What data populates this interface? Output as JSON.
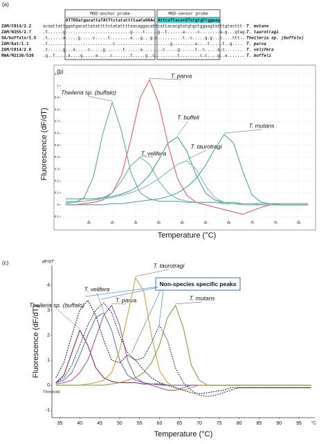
{
  "figure_labels": {
    "a": "(a)",
    "b": "(b)",
    "c": "(c)"
  },
  "alignment": {
    "anchor_label": "MOD-anchor probe",
    "sensor_label": "MOD-sensor probe",
    "anchor_probe": "ATTGGatgacattaTAtTtctatattttaaCaGGAc",
    "sensor_probe": "AttcaTtacacGTatgtgCtggaag",
    "rows": [
      {
        "id": "ZAM/C914/2.2",
        "sequence": "acaattattggatgacattatattttctatattttaacaggacattcattacacgtatgtgctggaagtatttgtacttt",
        "species": "T. mutans"
      },
      {
        "id": "ZAM/N355/2.7",
        "sequence": ".t......g..........................g....t.....g..t......a.....c........a.g...gtag.",
        "species": "T. taurotragi"
      },
      {
        "id": "SA/buffalo/1.5",
        "sequence": ".t......a.....g.....c.....t........a...g...g.c..........t..c.....g.g...c....ttt..",
        "species": "Theileria sp. (buffalo)"
      },
      {
        "id": "ZAM/Kat/1.1",
        "sequence": ".t..........................c......................g.........a....t.....t..g....",
        "species": "T. parva"
      },
      {
        "id": "ZAM/C914/2.8",
        "sequence": ".t......g...a.....c.....g.......t......a........c.....g......t..c.....a.c.......",
        "species": "T. velifera"
      },
      {
        "id": "RWA/M2138/538",
        "sequence": ".g..t.....a....g.....a.....c.......t.....g..c.........t........c.c....g..a.......",
        "species": "T. buffeli"
      }
    ]
  },
  "chart_data": [
    {
      "type": "line",
      "x_label": "Temperature (°C)",
      "y_label": "Fluorescence (dF/dT)",
      "xlim": [
        29,
        83
      ],
      "ylim": [
        -0.13,
        1.15
      ],
      "xticks": [
        35,
        40,
        45,
        50,
        55,
        60,
        65,
        70,
        75,
        80
      ],
      "yticks": [
        -0.1,
        0,
        0.1,
        0.2,
        0.3,
        0.4,
        0.5,
        0.6,
        0.7,
        0.8,
        0.9,
        1,
        1.1
      ],
      "grid": true,
      "x": [
        30,
        32,
        34,
        36,
        38,
        40,
        42,
        44,
        46,
        48,
        50,
        52,
        54,
        56,
        58,
        60,
        62,
        64,
        66,
        68,
        70,
        72,
        74,
        76,
        78,
        80,
        82
      ],
      "series": [
        {
          "name": "Theileria sp. (buffalo)",
          "color": "#5fa8a0",
          "values": [
            0.01,
            0.02,
            0.06,
            0.24,
            0.6,
            0.86,
            0.62,
            0.27,
            0.1,
            0.05,
            0.03,
            0.03,
            0.03,
            0.02,
            0.02,
            0.02,
            0.02,
            0.01,
            0.01,
            0.01,
            0.01,
            0,
            0,
            0,
            0,
            0,
            0
          ]
        },
        {
          "name": "T. parva",
          "color": "#d9606a",
          "values": [
            0,
            0,
            0.01,
            0.02,
            0.04,
            0.1,
            0.25,
            0.55,
            0.9,
            1.05,
            0.85,
            0.5,
            0.22,
            0.08,
            0.02,
            0,
            -0.02,
            -0.04,
            -0.06,
            -0.08,
            -0.05,
            -0.02,
            0,
            0.01,
            0.01,
            0.01,
            0.01
          ]
        },
        {
          "name": "T. velifera",
          "color": "#6fb3a8",
          "values": [
            0.02,
            0.02,
            0.03,
            0.04,
            0.06,
            0.1,
            0.2,
            0.33,
            0.4,
            0.34,
            0.2,
            0.1,
            0.05,
            0.03,
            0.02,
            0.02,
            0.02,
            0.02,
            0.02,
            0.01,
            0.01,
            0.01,
            0.01,
            0.01,
            0.01,
            0.01,
            0.01
          ]
        },
        {
          "name": "T. buffeli",
          "color": "#4f9c96",
          "values": [
            0.05,
            0.05,
            0.05,
            0.05,
            0.06,
            0.07,
            0.09,
            0.12,
            0.17,
            0.25,
            0.38,
            0.52,
            0.57,
            0.45,
            0.25,
            0.1,
            0.04,
            0.02,
            0.01,
            0,
            0,
            0,
            0,
            0,
            0,
            0,
            0
          ]
        },
        {
          "name": "T. taurotragi",
          "color": "#7cbcb0",
          "values": [
            0.03,
            0.03,
            0.03,
            0.04,
            0.05,
            0.06,
            0.08,
            0.1,
            0.13,
            0.17,
            0.22,
            0.28,
            0.34,
            0.37,
            0.3,
            0.16,
            0.06,
            0.02,
            0.01,
            0,
            0,
            0,
            0,
            0,
            0,
            0,
            0
          ]
        },
        {
          "name": "T. mutans",
          "color": "#55a39a",
          "values": [
            0,
            0,
            0,
            0,
            0,
            0.01,
            0.01,
            0.02,
            0.03,
            0.04,
            0.05,
            0.07,
            0.1,
            0.15,
            0.22,
            0.33,
            0.47,
            0.59,
            0.52,
            0.28,
            0.08,
            0.02,
            0.01,
            0,
            0,
            0,
            0
          ]
        }
      ]
    },
    {
      "type": "line",
      "x_label": "Temperature (°C)",
      "y_label": "Fluorescence (dF/dT)",
      "y_unit": "dF/dT",
      "x_unit": "°C",
      "threshold_label": "Threshold",
      "callout": "Non-species specific peaks",
      "xlim": [
        33,
        99
      ],
      "ylim": [
        -1.3,
        4.8
      ],
      "xticks": [
        35,
        40,
        45,
        50,
        55,
        60,
        65,
        70,
        75,
        80,
        85,
        90,
        95
      ],
      "yticks": [
        -1,
        0,
        1,
        2,
        3,
        4
      ],
      "grid": false,
      "x": [
        34,
        36,
        38,
        40,
        42,
        44,
        46,
        48,
        50,
        52,
        54,
        56,
        58,
        60,
        62,
        64,
        66,
        68,
        70,
        72,
        74,
        76,
        78,
        80,
        82,
        84,
        86,
        88,
        90,
        92,
        94,
        96,
        98
      ],
      "series": [
        {
          "name": "Theileria sp. (buffalo)",
          "color": "#8c2a4a",
          "values": [
            0.1,
            0.4,
            1.3,
            2.2,
            1.6,
            0.7,
            0.3,
            0.15,
            0.1,
            0.1,
            0.1,
            0.05,
            0.05,
            0.05,
            0,
            0,
            0,
            0,
            0,
            0,
            0,
            0,
            0,
            0,
            0,
            0,
            0,
            0,
            0,
            0,
            0,
            0,
            0
          ]
        },
        {
          "name": "T. velifera",
          "color": "#5a7fc2",
          "values": [
            0.1,
            0.2,
            0.5,
            1.2,
            2.0,
            2.7,
            2.9,
            2.2,
            1.0,
            0.4,
            0.2,
            0.1,
            0.05,
            0,
            0,
            0,
            0,
            0,
            0,
            0,
            0,
            0,
            0,
            0,
            0,
            0,
            0,
            0,
            0,
            0,
            0,
            0,
            0
          ]
        },
        {
          "name": "T. parva",
          "color": "#9a5aa8",
          "values": [
            0.05,
            0.1,
            0.2,
            0.5,
            1.0,
            1.9,
            2.8,
            3.2,
            2.4,
            1.0,
            0.3,
            0.1,
            0,
            -0.1,
            -0.2,
            -0.2,
            -0.1,
            0,
            0,
            0,
            0,
            0,
            0,
            0,
            0,
            0,
            0,
            0,
            0,
            0,
            0,
            0,
            0
          ]
        },
        {
          "name": "T. taurotragi",
          "color": "#c9a244",
          "values": [
            0,
            0,
            0,
            0,
            0.05,
            0.1,
            0.2,
            0.5,
            1.4,
            2.8,
            4.3,
            3.8,
            2.0,
            0.6,
            0.1,
            -0.1,
            -0.2,
            -0.1,
            0,
            0,
            0,
            0,
            0,
            0,
            0,
            0,
            0,
            0,
            0,
            0,
            0,
            0,
            0
          ]
        },
        {
          "name": "T. mutans",
          "color": "#7aa342",
          "values": [
            0,
            0,
            0,
            0,
            0,
            0,
            0,
            0.05,
            0.1,
            0.2,
            0.3,
            0.5,
            0.9,
            1.6,
            2.7,
            3.2,
            2.3,
            0.8,
            0.2,
            0,
            0,
            0,
            0,
            0,
            0,
            0,
            0,
            0,
            0,
            0,
            0,
            0,
            0
          ]
        },
        {
          "color": "#222222",
          "dash": true,
          "values": [
            0.3,
            0.9,
            2.0,
            3.0,
            3.4,
            2.8,
            1.8,
            1.0,
            0.9,
            1.2,
            1.0,
            0.6,
            0.3,
            0.1,
            0,
            -0.1,
            -0.2,
            -0.3,
            -0.35,
            -0.3,
            -0.25,
            -0.2,
            -0.1,
            -0.1,
            -0.1,
            -0.1,
            -0.1,
            -0.1,
            -0.1,
            -0.1,
            -0.1,
            -0.1,
            -0.1
          ]
        },
        {
          "color": "#333355",
          "dash": true,
          "values": [
            0.1,
            0.3,
            0.8,
            1.6,
            2.4,
            3.0,
            3.3,
            2.9,
            2.0,
            1.3,
            1.0,
            1.1,
            1.7,
            2.4,
            1.8,
            0.7,
            0.1,
            -0.2,
            -0.4,
            -0.45,
            -0.4,
            -0.3,
            -0.2,
            -0.1,
            -0.1,
            -0.1,
            -0.1,
            -0.1,
            -0.1,
            -0.1,
            -0.1,
            -0.1,
            -0.1
          ]
        }
      ]
    }
  ]
}
